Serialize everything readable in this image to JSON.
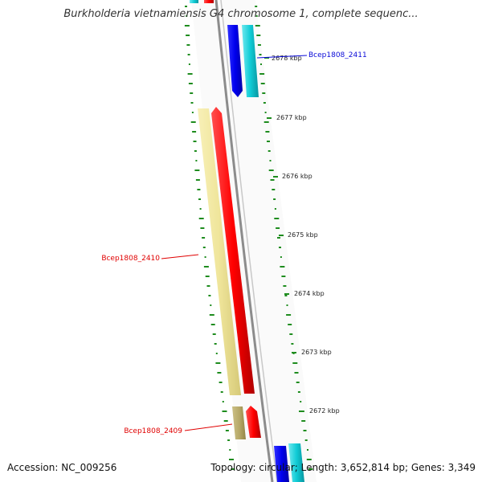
{
  "title": "Burkholderia vietnamiensis G4 chromosome 1, complete sequenc...",
  "ticks": [
    {
      "label": "2678 kbp"
    },
    {
      "label": "2677 kbp"
    },
    {
      "label": "2676 kbp"
    },
    {
      "label": "2675 kbp"
    },
    {
      "label": "2674 kbp"
    },
    {
      "label": "2673 kbp"
    },
    {
      "label": "2672 kbp"
    }
  ],
  "genes": [
    {
      "name": "Bcep1808_2411",
      "color": "#0a0ad8"
    },
    {
      "name": "Bcep1808_2410",
      "color": "#e00000"
    },
    {
      "name": "Bcep1808_2409",
      "color": "#e00000"
    }
  ],
  "colors": {
    "backbone": "#8c8c8c",
    "forward_cds": "#ff0000",
    "forward_gene": "#f0e68c",
    "reverse_cds": "#0000ff",
    "reverse_gene": "#00c8d2",
    "gc_skew": "#1e8c1e"
  },
  "footer": {
    "accession": "Accession: NC_009256",
    "summary": "Topology: circular; Length: 3,652,814 bp; Genes: 3,349"
  }
}
